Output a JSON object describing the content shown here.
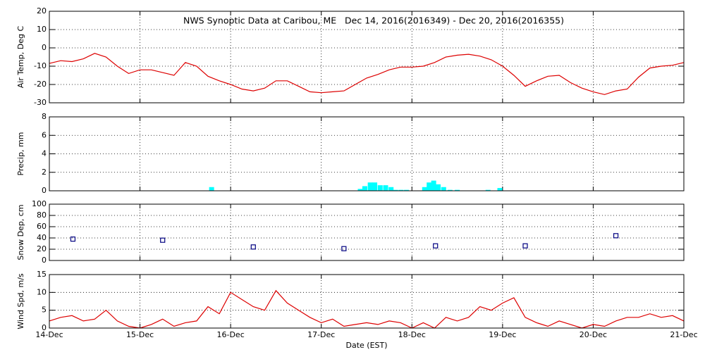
{
  "chart_data": [
    {
      "type": "line",
      "title": "NWS Synoptic Data at Caribou, ME   Dec 14, 2016(2016349) - Dec 20, 2016(2016355)",
      "ylabel": "Air Temp, Deg C",
      "color": "#dd0000",
      "x": [
        0,
        0.125,
        0.25,
        0.375,
        0.5,
        0.625,
        0.75,
        0.875,
        1,
        1.125,
        1.25,
        1.375,
        1.5,
        1.625,
        1.75,
        1.875,
        2,
        2.125,
        2.25,
        2.375,
        2.5,
        2.625,
        2.75,
        2.875,
        3,
        3.125,
        3.25,
        3.375,
        3.5,
        3.625,
        3.75,
        3.875,
        4,
        4.125,
        4.25,
        4.375,
        4.5,
        4.625,
        4.75,
        4.875,
        5,
        5.125,
        5.25,
        5.375,
        5.5,
        5.625,
        5.75,
        5.875,
        6,
        6.125,
        6.25,
        6.375,
        6.5,
        6.625,
        6.75,
        6.875,
        7
      ],
      "values": [
        -8.5,
        -7,
        -7.5,
        -6,
        -3,
        -5,
        -10,
        -14,
        -12,
        -12,
        -13.5,
        -15,
        -8,
        -10,
        -15.5,
        -18,
        -20,
        -22.5,
        -23.5,
        -22,
        -18,
        -18,
        -21,
        -24,
        -24.5,
        -24,
        -23.5,
        -20,
        -16.5,
        -14.5,
        -12,
        -10.5,
        -10.5,
        -10,
        -8,
        -5,
        -4,
        -3.5,
        -4.5,
        -6.5,
        -10,
        -15,
        -21,
        -18,
        -15.5,
        -15,
        -19,
        -22,
        -24,
        -25.5,
        -23.5,
        -22.5,
        -16,
        -11,
        -10,
        -9.5,
        -8
      ],
      "xlim": [
        0,
        7
      ],
      "ylim": [
        -30,
        20
      ],
      "yticks": [
        -30,
        -20,
        -10,
        0,
        10,
        20
      ],
      "grid": true
    },
    {
      "type": "bar",
      "ylabel": "Precip, mm",
      "color": "#00ffff",
      "x": [
        1.79,
        3.43,
        3.48,
        3.54,
        3.59,
        3.65,
        3.71,
        3.77,
        3.82,
        3.88,
        3.94,
        4.14,
        4.19,
        4.24,
        4.29,
        4.35,
        4.42,
        4.5,
        4.84,
        4.97
      ],
      "values": [
        0.4,
        0.2,
        0.5,
        0.9,
        0.9,
        0.6,
        0.6,
        0.4,
        0.1,
        0.1,
        0.1,
        0.4,
        0.9,
        1.1,
        0.7,
        0.4,
        0.1,
        0.1,
        0.1,
        0.3
      ],
      "xlim": [
        0,
        7
      ],
      "ylim": [
        0,
        8
      ],
      "yticks": [
        0,
        2,
        4,
        6,
        8
      ],
      "grid": true
    },
    {
      "type": "scatter",
      "ylabel": "Snow Dep, cm",
      "color": "#000080",
      "x": [
        0.26,
        1.25,
        2.25,
        3.25,
        4.26,
        5.25,
        6.25
      ],
      "values": [
        38,
        36,
        24,
        21,
        26,
        26,
        44
      ],
      "xlim": [
        0,
        7
      ],
      "ylim": [
        0,
        100
      ],
      "yticks": [
        0,
        20,
        40,
        60,
        80,
        100
      ],
      "grid": true
    },
    {
      "type": "line",
      "ylabel": "Wind Spd, m/s",
      "xlabel": "Date (EST)",
      "color": "#dd0000",
      "x": [
        0,
        0.125,
        0.25,
        0.375,
        0.5,
        0.625,
        0.75,
        0.875,
        1,
        1.125,
        1.25,
        1.375,
        1.5,
        1.625,
        1.75,
        1.875,
        2,
        2.125,
        2.25,
        2.375,
        2.5,
        2.625,
        2.75,
        2.875,
        3,
        3.125,
        3.25,
        3.375,
        3.5,
        3.625,
        3.75,
        3.875,
        4,
        4.125,
        4.25,
        4.375,
        4.5,
        4.625,
        4.75,
        4.875,
        5,
        5.125,
        5.25,
        5.375,
        5.5,
        5.625,
        5.75,
        5.875,
        6,
        6.125,
        6.25,
        6.375,
        6.5,
        6.625,
        6.75,
        6.875,
        7
      ],
      "values": [
        2,
        3,
        3.5,
        2,
        2.5,
        5,
        2,
        0.5,
        0,
        1,
        2.5,
        0.5,
        1.5,
        2,
        6,
        4,
        10,
        8,
        6,
        5,
        10.5,
        7,
        5,
        3,
        1.5,
        2.5,
        0.5,
        1,
        1.5,
        1,
        2,
        1.5,
        0,
        1.5,
        0,
        3,
        2,
        3,
        6,
        5,
        7,
        8.5,
        3,
        1.5,
        0.5,
        2,
        1,
        0,
        1,
        0.5,
        2,
        3,
        3,
        4,
        3,
        3.5,
        2
      ],
      "xlim": [
        0,
        7
      ],
      "ylim": [
        0,
        15
      ],
      "yticks": [
        0,
        5,
        10,
        15
      ],
      "grid": true,
      "xticks": [
        {
          "value": 0,
          "label": "14-Dec"
        },
        {
          "value": 1,
          "label": "15-Dec"
        },
        {
          "value": 2,
          "label": "16-Dec"
        },
        {
          "value": 3,
          "label": "17-Dec"
        },
        {
          "value": 4,
          "label": "18-Dec"
        },
        {
          "value": 5,
          "label": "19-Dec"
        },
        {
          "value": 6,
          "label": "20-Dec"
        },
        {
          "value": 7,
          "label": "21-Dec"
        }
      ]
    }
  ]
}
